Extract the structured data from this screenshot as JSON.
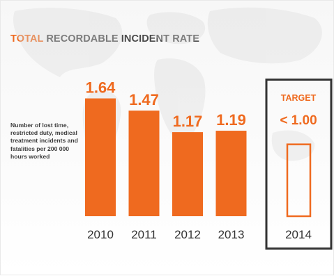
{
  "chart_data": {
    "type": "bar",
    "title_accent": "TOTAL",
    "title_rest": " RECORDABLE INCIDENT RATE",
    "description": "Number of lost time, restricted duty, medical treatment incidents and fatalities per 200 000 hours worked",
    "categories": [
      "2010",
      "2011",
      "2012",
      "2013"
    ],
    "values": [
      1.64,
      1.47,
      1.17,
      1.19
    ],
    "value_labels": [
      "1.64",
      "1.47",
      "1.17",
      "1.19"
    ],
    "ylim": [
      0,
      1.8
    ],
    "bar_color": "#ef6a1f",
    "target": {
      "label": "TARGET",
      "value_label": "< 1.00",
      "value": 1.0,
      "category": "2014"
    },
    "legend": "none",
    "grid": false
  }
}
